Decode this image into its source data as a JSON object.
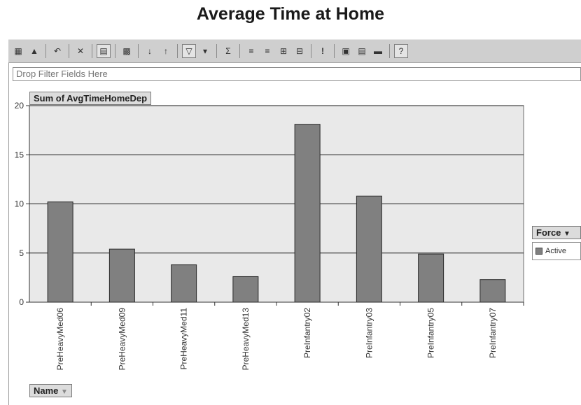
{
  "title": "Average Time at Home",
  "filter_placeholder": "Drop Filter Fields Here",
  "data_field_label": "Sum of AvgTimeHomeDep",
  "series_field_label": "Force",
  "category_field_label": "Name",
  "toolbar_icons": [
    "chart-wizard-icon",
    "chart-type-icon",
    "undo-icon",
    "delete-icon",
    "field-list-icon",
    "property-icon",
    "sort-ascending-icon",
    "sort-descending-icon",
    "autofilter-icon",
    "show-top-icon",
    "autocalc-icon",
    "promote-icon",
    "demote-icon",
    "expand-icon",
    "collapse-icon",
    "refresh-icon",
    "layout-icon",
    "details-icon",
    "hide-details-icon",
    "help-icon"
  ],
  "colors": {
    "bar": "#808080",
    "plot_bg": "#e9e9e9",
    "grid": "#1a1a1a"
  },
  "chart_data": {
    "type": "bar",
    "categories": [
      "PreHeavyMed06",
      "PreHeavyMed09",
      "PreHeavyMed11",
      "PreHeavyMed13",
      "PreInfantry02",
      "PreInfantry03",
      "PreInfantry05",
      "PreInfantry07"
    ],
    "series": [
      {
        "name": "Active",
        "values": [
          10.2,
          5.4,
          3.8,
          2.6,
          18.1,
          10.8,
          4.9,
          2.3
        ]
      }
    ],
    "ylim": [
      0,
      20
    ],
    "yticks": [
      0,
      5,
      10,
      15,
      20
    ],
    "grid": true,
    "legend": "right"
  }
}
